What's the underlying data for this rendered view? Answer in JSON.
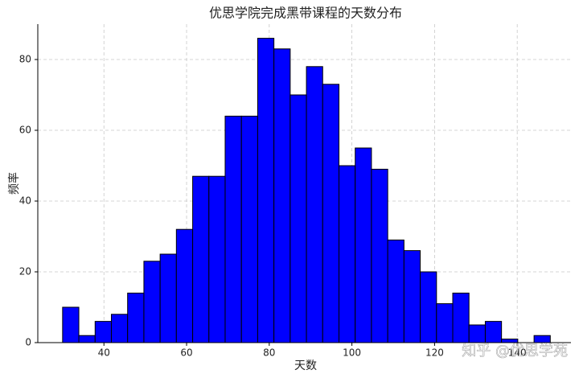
{
  "chart_data": {
    "type": "histogram",
    "title": "优思学院完成黑带课程的天数分布",
    "x_label": "天数",
    "y_label": "频率",
    "bins": [
      30,
      33.93,
      37.87,
      41.8,
      45.73,
      49.67,
      53.6,
      57.53,
      61.47,
      65.4,
      69.33,
      73.27,
      77.2,
      81.13,
      85.07,
      89,
      92.93,
      96.87,
      100.8,
      104.73,
      108.67,
      112.6,
      116.53,
      120.47,
      124.4,
      128.33,
      132.27,
      136.2,
      140.13,
      144.07,
      148
    ],
    "values": [
      10,
      2,
      6,
      8,
      14,
      23,
      25,
      32,
      47,
      47,
      64,
      64,
      86,
      83,
      70,
      78,
      73,
      50,
      55,
      49,
      29,
      26,
      20,
      11,
      14,
      5,
      6,
      1,
      0,
      2
    ],
    "color": "#0000ff",
    "edge_color": "#000000",
    "xlim": [
      24,
      153
    ],
    "ylim": [
      0,
      90
    ],
    "xticks": [
      40,
      60,
      80,
      100,
      120,
      140
    ],
    "yticks": [
      0,
      20,
      40,
      60,
      80
    ],
    "grid": true,
    "watermark": "知乎 @优思学苑"
  }
}
